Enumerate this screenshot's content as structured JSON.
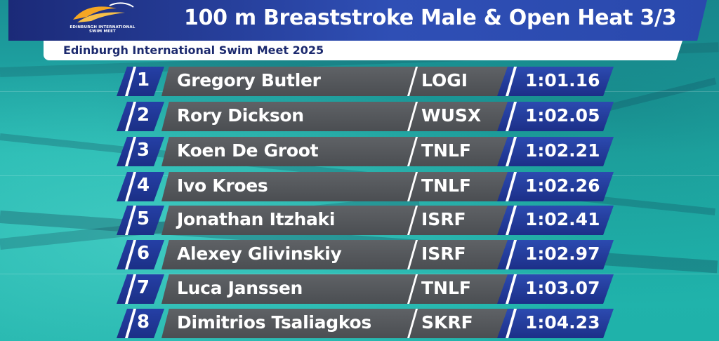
{
  "header": {
    "logo_text": "EDINBURGH INTERNATIONAL SWIM MEET",
    "title": "100 m Breaststroke Male & Open Heat 3/3",
    "subtitle": "Edinburgh International Swim Meet 2025"
  },
  "colors": {
    "header_blue": "#2a49ad",
    "header_dark": "#1b2a78",
    "cell_grey": "#56595d",
    "rank_blue": "#1f3590",
    "time_blue": "#2440a0",
    "pool_teal": "#1fb2aa"
  },
  "results": [
    {
      "rank": "1",
      "name": "Gregory Butler",
      "club": "LOGI",
      "time": "1:01.16"
    },
    {
      "rank": "2",
      "name": "Rory Dickson",
      "club": "WUSX",
      "time": "1:02.05"
    },
    {
      "rank": "3",
      "name": "Koen De Groot",
      "club": "TNLF",
      "time": "1:02.21"
    },
    {
      "rank": "4",
      "name": "Ivo Kroes",
      "club": "TNLF",
      "time": "1:02.26"
    },
    {
      "rank": "5",
      "name": "Jonathan Itzhaki",
      "club": "ISRF",
      "time": "1:02.41"
    },
    {
      "rank": "6",
      "name": "Alexey Glivinskiy",
      "club": "ISRF",
      "time": "1:02.97"
    },
    {
      "rank": "7",
      "name": "Luca Janssen",
      "club": "TNLF",
      "time": "1:03.07"
    },
    {
      "rank": "8",
      "name": "Dimitrios Tsaliagkos",
      "club": "SKRF",
      "time": "1:04.23"
    }
  ]
}
